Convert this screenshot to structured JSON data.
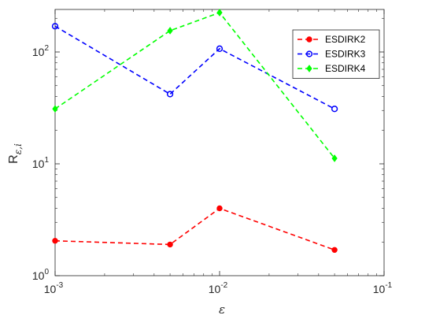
{
  "chart_data": {
    "type": "line",
    "x_scale": "log",
    "y_scale": "log",
    "xlim": [
      0.001,
      0.1
    ],
    "ylim": [
      1,
      240
    ],
    "x_ticks": [
      0.001,
      0.01,
      0.1
    ],
    "x_tick_labels": [
      {
        "base": "10",
        "exp": "-3"
      },
      {
        "base": "10",
        "exp": "-2"
      },
      {
        "base": "10",
        "exp": "-1"
      }
    ],
    "y_ticks": [
      1,
      10,
      100
    ],
    "y_tick_labels": [
      {
        "base": "10",
        "exp": "0"
      },
      {
        "base": "10",
        "exp": "1"
      },
      {
        "base": "10",
        "exp": "2"
      }
    ],
    "xlabel": "ε",
    "ylabel": {
      "main": "R",
      "sub": "ε,i"
    },
    "legend_position": "top-right",
    "series": [
      {
        "name": "ESDIRK2",
        "color": "#ff0000",
        "marker": "dot",
        "x": [
          0.001,
          0.005,
          0.01,
          0.05
        ],
        "y": [
          2.05,
          1.9,
          4.0,
          1.7
        ]
      },
      {
        "name": "ESDIRK3",
        "color": "#0000ff",
        "marker": "circle",
        "x": [
          0.001,
          0.005,
          0.01,
          0.05
        ],
        "y": [
          170,
          42,
          107,
          31
        ]
      },
      {
        "name": "ESDIRK4",
        "color": "#00ff00",
        "marker": "diamond",
        "x": [
          0.001,
          0.005,
          0.01,
          0.05
        ],
        "y": [
          31,
          155,
          225,
          11.2
        ]
      }
    ]
  }
}
